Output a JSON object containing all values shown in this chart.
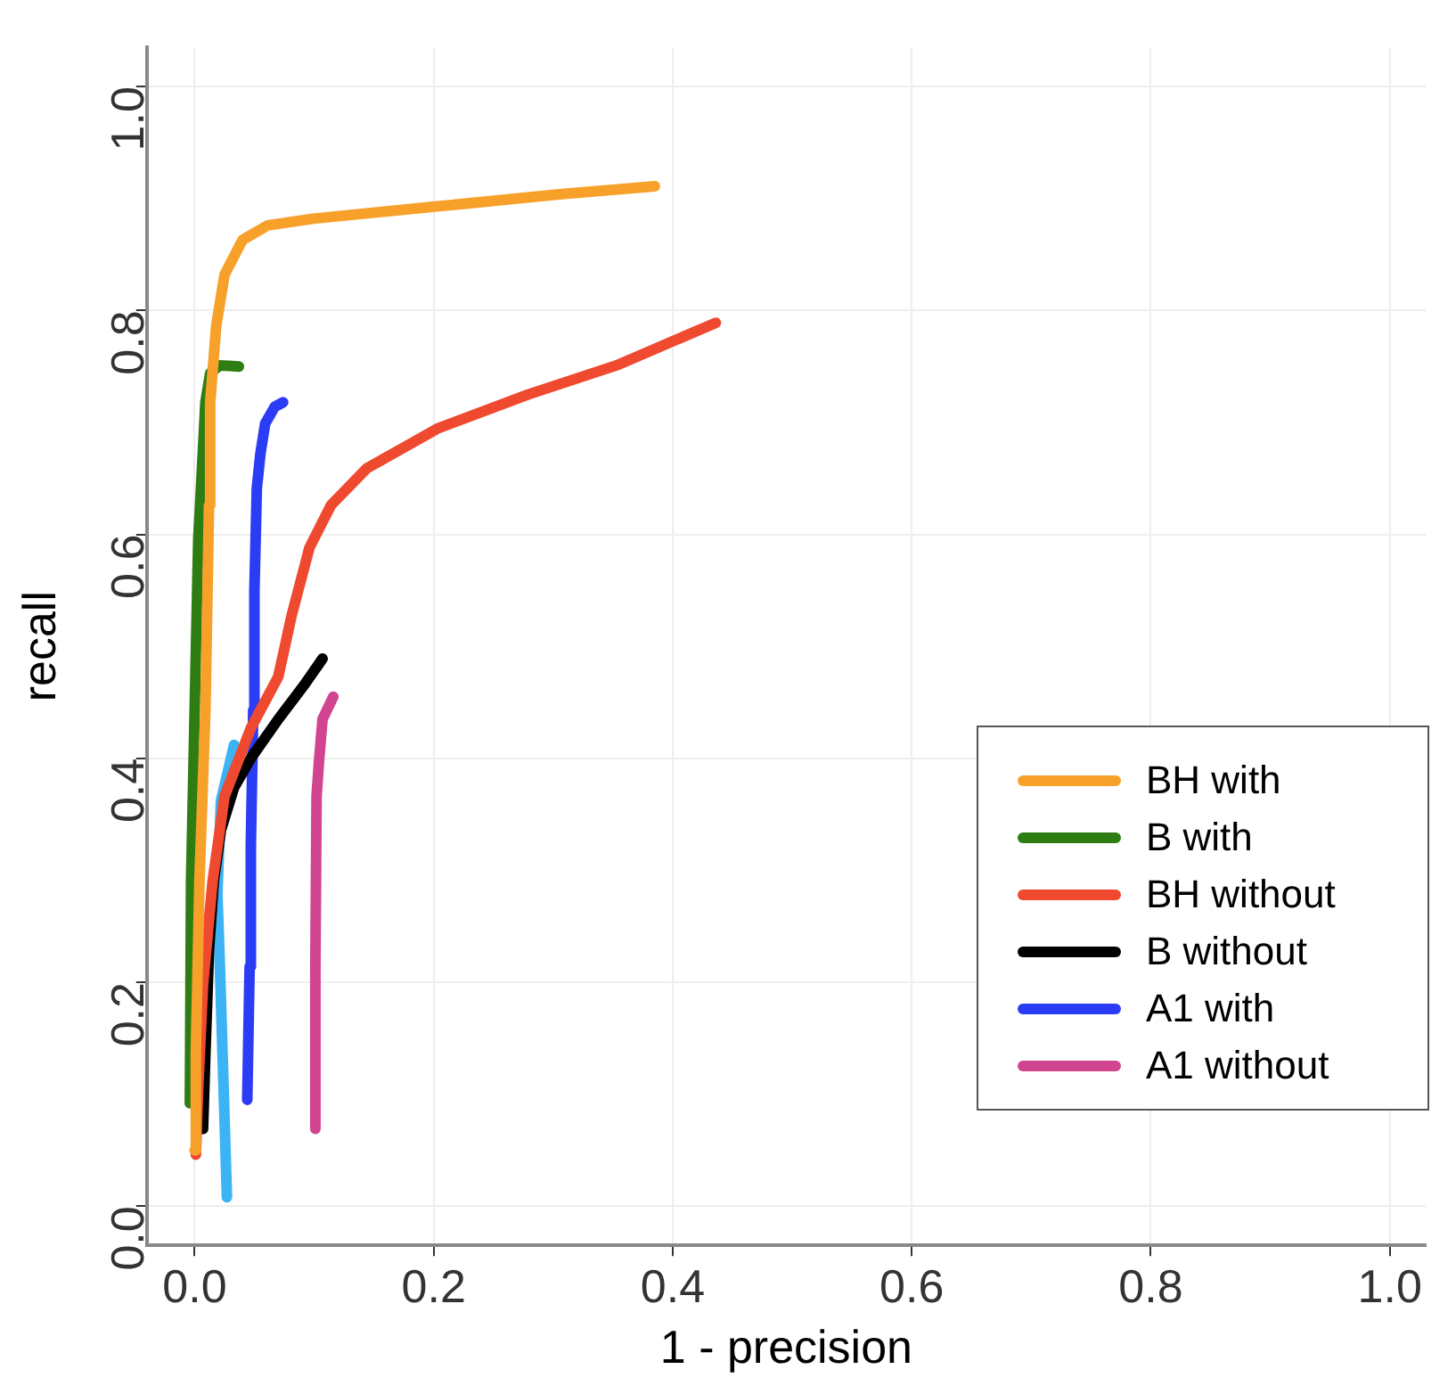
{
  "chart_data": {
    "type": "line",
    "xlabel": "1 - precision",
    "ylabel": "recall",
    "xlim": [
      -0.04,
      1.03
    ],
    "ylim": [
      -0.035,
      1.035
    ],
    "xticks": [
      {
        "value": 0,
        "label": "0.0"
      },
      {
        "value": 0.2,
        "label": "0.2"
      },
      {
        "value": 0.4,
        "label": "0.4"
      },
      {
        "value": 0.6,
        "label": "0.6"
      },
      {
        "value": 0.8,
        "label": "0.8"
      },
      {
        "value": 1,
        "label": "1.0"
      }
    ],
    "yticks": [
      {
        "value": 0,
        "label": "0.0"
      },
      {
        "value": 0.2,
        "label": "0.2"
      },
      {
        "value": 0.4,
        "label": "0.4"
      },
      {
        "value": 0.6,
        "label": "0.6"
      },
      {
        "value": 0.8,
        "label": "0.8"
      },
      {
        "value": 1,
        "label": "1.0"
      }
    ],
    "grid": true,
    "legend": "bottom right",
    "marker": "none",
    "line_style": "solid",
    "series": [
      {
        "name": "BH with",
        "color": "#f7a12b",
        "x": [
          0,
          0.001,
          0.004,
          0.009,
          0.012,
          0.013,
          0.018,
          0.025,
          0.04,
          0.061,
          0.099,
          0.203,
          0.307,
          0.385
        ],
        "values": [
          0.05,
          0.137,
          0.29,
          0.443,
          0.626,
          0.718,
          0.786,
          0.832,
          0.863,
          0.876,
          0.882,
          0.893,
          0.904,
          0.911
        ]
      },
      {
        "name": "B with",
        "color": "#2e7d12",
        "x": [
          -0.004,
          -0.003,
          0,
          0.003,
          0.006,
          0.009,
          0.013,
          0.021,
          0.037
        ],
        "values": [
          0.092,
          0.29,
          0.443,
          0.595,
          0.656,
          0.718,
          0.744,
          0.751,
          0.75
        ]
      },
      {
        "name": "BH without",
        "color": "#ef4930",
        "x": [
          0.001,
          0.003,
          0.007,
          0.015,
          0.025,
          0.047,
          0.07,
          0.081,
          0.096,
          0.114,
          0.144,
          0.204,
          0.279,
          0.353,
          0.436
        ],
        "values": [
          0.046,
          0.107,
          0.198,
          0.29,
          0.366,
          0.427,
          0.473,
          0.527,
          0.588,
          0.626,
          0.659,
          0.695,
          0.725,
          0.751,
          0.789
        ]
      },
      {
        "name": "B without",
        "color": "#000000",
        "x": [
          0.007,
          0.009,
          0.012,
          0.016,
          0.022,
          0.033,
          0.047,
          0.07,
          0.092,
          0.107
        ],
        "values": [
          0.069,
          0.137,
          0.229,
          0.29,
          0.336,
          0.374,
          0.4,
          0.435,
          0.466,
          0.489
        ]
      },
      {
        "name": "A1 with",
        "color": "#2b3cf5",
        "x": [
          0.044,
          0.046,
          0.047,
          0.049,
          0.05,
          0.052,
          0.055,
          0.059,
          0.067,
          0.074
        ],
        "values": [
          0.095,
          0.214,
          0.321,
          0.443,
          0.55,
          0.641,
          0.672,
          0.699,
          0.714,
          0.718
        ]
      },
      {
        "name": "A1 without",
        "color": "#d14590",
        "x": [
          0.101,
          0.101,
          0.102,
          0.104,
          0.107,
          0.116
        ],
        "values": [
          0.069,
          0.214,
          0.366,
          0.397,
          0.435,
          0.455
        ]
      },
      {
        "color": "#3bb3f5",
        "x": [
          0.027,
          0.021,
          0.019,
          0.022,
          0.033
        ],
        "values": [
          0.008,
          0.218,
          0.279,
          0.362,
          0.412
        ]
      }
    ]
  }
}
